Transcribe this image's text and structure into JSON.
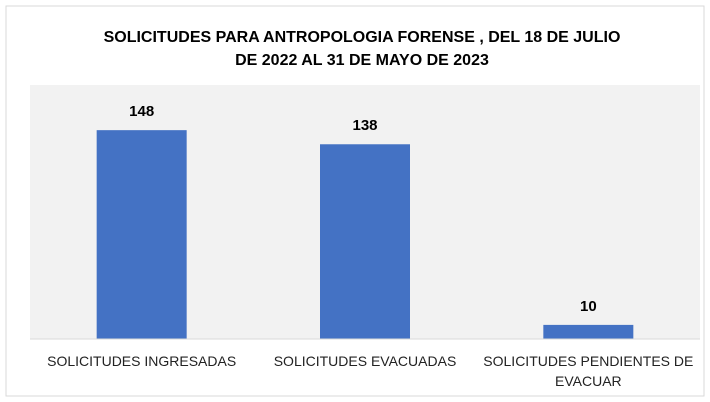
{
  "chart_data": {
    "type": "bar",
    "title": [
      "SOLICITUDES PARA ANTROPOLOGIA FORENSE , DEL 18 DE JULIO",
      "DE 2022  AL 31 DE MAYO DE 2023"
    ],
    "categories": [
      "SOLICITUDES INGRESADAS",
      "SOLICITUDES EVACUADAS",
      "SOLICITUDES PENDIENTES DE EVACUAR"
    ],
    "values": [
      148,
      138,
      10
    ],
    "color": "#4472c4",
    "ylim": [
      0,
      180
    ]
  }
}
